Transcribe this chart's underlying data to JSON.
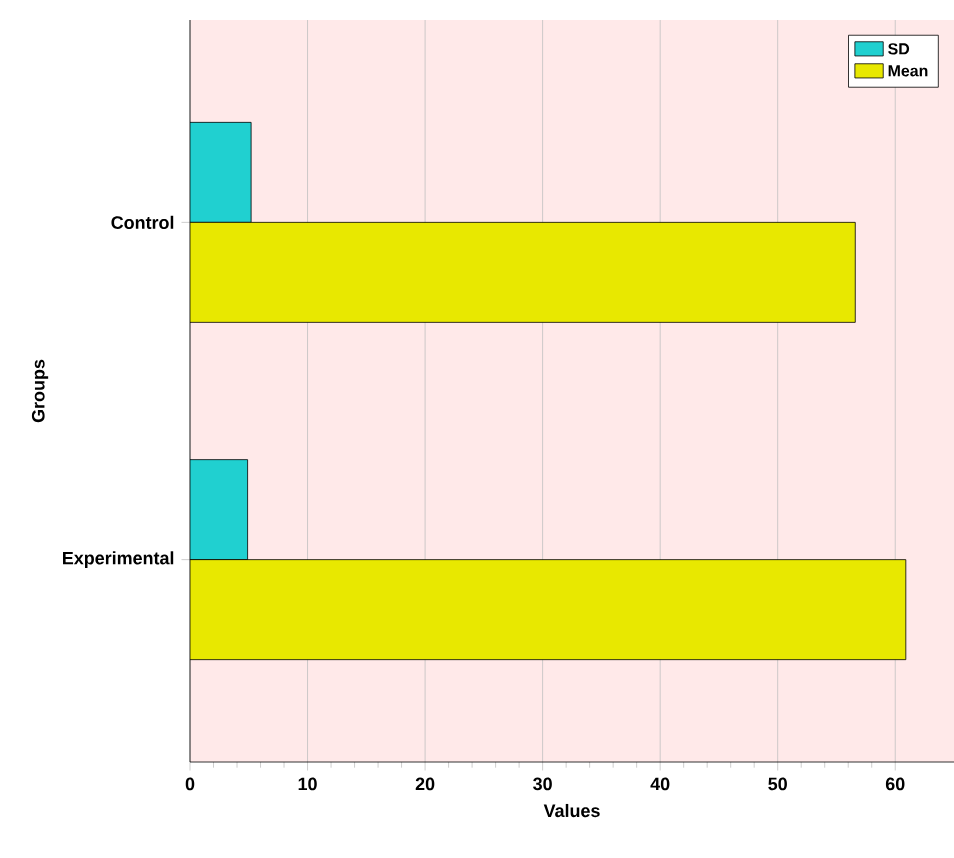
{
  "chart_data": {
    "type": "bar",
    "orientation": "horizontal",
    "xlabel": "Values",
    "ylabel": "Groups",
    "categories": [
      "Control",
      "Experimental"
    ],
    "series": [
      {
        "name": "SD",
        "color": "#20d0d0",
        "values": [
          5.2,
          4.9
        ]
      },
      {
        "name": "Mean",
        "color": "#e8e800",
        "values": [
          56.6,
          60.9
        ]
      }
    ],
    "xlim": [
      0,
      65
    ],
    "xticks": [
      0,
      10,
      20,
      30,
      40,
      50,
      60
    ],
    "grid": "x",
    "legend": "top right"
  }
}
